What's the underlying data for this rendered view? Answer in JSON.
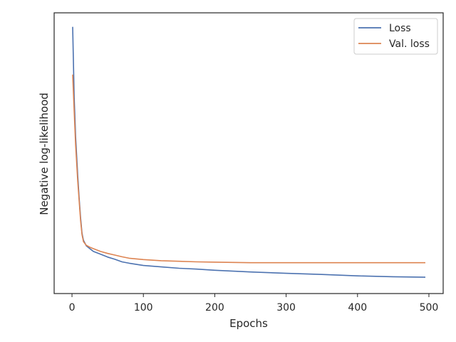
{
  "chart_data": {
    "type": "line",
    "title": "",
    "xlabel": "Epochs",
    "ylabel": "Negative log-likelihood",
    "xlim": [
      -25,
      520
    ],
    "ylim": [
      0,
      1
    ],
    "x_ticks": [
      "0",
      "100",
      "200",
      "300",
      "400",
      "500"
    ],
    "x_tick_values": [
      0,
      100,
      200,
      300,
      400,
      500
    ],
    "y_ticks_shown": false,
    "grid": false,
    "legend": "top-right",
    "series": [
      {
        "name": "Loss",
        "color": "#4c72b0",
        "x": [
          1,
          3,
          5,
          8,
          10,
          12,
          14,
          16,
          20,
          25,
          30,
          40,
          50,
          60,
          70,
          80,
          100,
          125,
          150,
          175,
          200,
          250,
          300,
          350,
          400,
          450,
          495
        ],
        "y": [
          0.95,
          0.7,
          0.56,
          0.42,
          0.34,
          0.27,
          0.215,
          0.19,
          0.17,
          0.16,
          0.15,
          0.14,
          0.13,
          0.122,
          0.113,
          0.108,
          0.1,
          0.095,
          0.09,
          0.087,
          0.083,
          0.077,
          0.072,
          0.068,
          0.063,
          0.06,
          0.058
        ]
      },
      {
        "name": "Val. loss",
        "color": "#dd8452",
        "x": [
          1,
          3,
          5,
          8,
          10,
          12,
          14,
          16,
          20,
          25,
          30,
          40,
          50,
          60,
          70,
          80,
          100,
          125,
          150,
          175,
          200,
          250,
          300,
          350,
          400,
          450,
          495
        ],
        "y": [
          0.78,
          0.65,
          0.53,
          0.4,
          0.33,
          0.26,
          0.21,
          0.185,
          0.172,
          0.165,
          0.16,
          0.15,
          0.143,
          0.137,
          0.131,
          0.126,
          0.121,
          0.117,
          0.115,
          0.113,
          0.112,
          0.11,
          0.11,
          0.11,
          0.11,
          0.11,
          0.11
        ]
      }
    ]
  }
}
